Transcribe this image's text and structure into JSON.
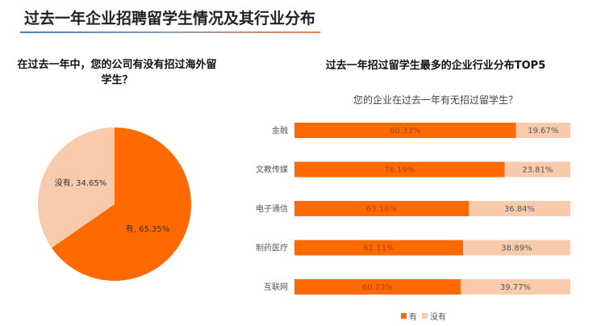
{
  "title": "过去一年企业招聘留学生情况及其行业分布",
  "chart_data": [
    {
      "type": "pie",
      "title": "在过去一年中，您的公司有没有招过海外留学生？",
      "slices": [
        {
          "label": "有",
          "value": 65.35,
          "display": "有, 65.35%",
          "color": "#FF6A00"
        },
        {
          "label": "没有",
          "value": 34.65,
          "display": "没有, 34.65%",
          "color": "#F8CBAD"
        }
      ]
    },
    {
      "type": "bar",
      "orientation": "horizontal",
      "stacked": true,
      "percent": true,
      "title": "过去一年招过留学生最多的企业行业分布TOP5",
      "subtitle": "您的企业在过去一年有无招过留学生？",
      "categories": [
        "金融",
        "文教传媒",
        "电子通信",
        "制药医疗",
        "互联网"
      ],
      "series": [
        {
          "name": "有",
          "values": [
            80.33,
            76.19,
            63.16,
            61.11,
            60.23
          ],
          "labels": [
            "80.33%",
            "76.19%",
            "63.16%",
            "61.11%",
            "60.23%"
          ],
          "color": "#FF6A00"
        },
        {
          "name": "没有",
          "values": [
            19.67,
            23.81,
            36.84,
            38.89,
            39.77
          ],
          "labels": [
            "19.67%",
            "23.81%",
            "36.84%",
            "38.89%",
            "39.77%"
          ],
          "color": "#F8CBAD"
        }
      ],
      "legend": "bottom"
    }
  ]
}
